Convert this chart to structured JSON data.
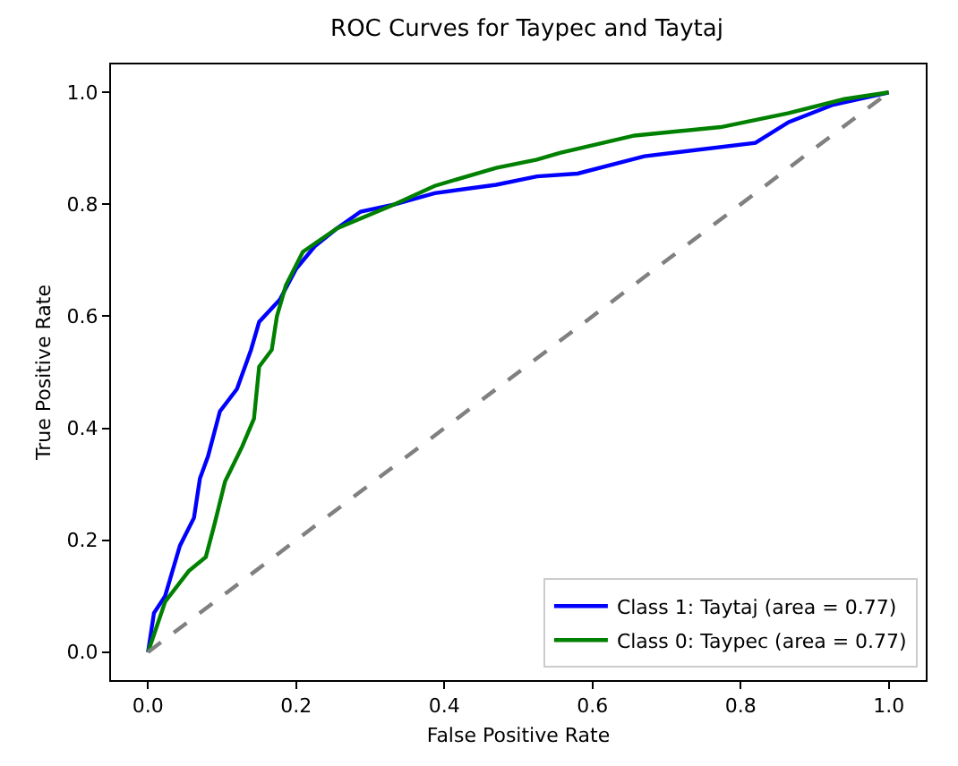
{
  "chart_data": {
    "type": "line",
    "title": "ROC Curves for Taypec and Taytaj",
    "xlabel": "False Positive Rate",
    "ylabel": "True Positive Rate",
    "xlim": [
      -0.05,
      1.05
    ],
    "ylim": [
      -0.05,
      1.05
    ],
    "xticks": [
      {
        "value": 0,
        "label": "0.0"
      },
      {
        "value": 0.2,
        "label": "0.2"
      },
      {
        "value": 0.4,
        "label": "0.4"
      },
      {
        "value": 0.6,
        "label": "0.6"
      },
      {
        "value": 0.8,
        "label": "0.8"
      },
      {
        "value": 1,
        "label": "1.0"
      }
    ],
    "yticks": [
      {
        "value": 0,
        "label": "0.0"
      },
      {
        "value": 0.2,
        "label": "0.2"
      },
      {
        "value": 0.4,
        "label": "0.4"
      },
      {
        "value": 0.6,
        "label": "0.6"
      },
      {
        "value": 0.8,
        "label": "0.8"
      },
      {
        "value": 1,
        "label": "1.0"
      }
    ],
    "grid": false,
    "legend": "bottom right",
    "marker": "none",
    "line_style": "solid",
    "series": [
      {
        "name": "Class 1: Taytaj (area = 0.77)",
        "color": "#0000ff",
        "x": [
          0,
          0.008,
          0.023,
          0.043,
          0.062,
          0.07,
          0.081,
          0.097,
          0.12,
          0.139,
          0.15,
          0.178,
          0.2,
          0.225,
          0.255,
          0.287,
          0.333,
          0.387,
          0.47,
          0.525,
          0.58,
          0.67,
          0.82,
          0.865,
          0.925,
          1
        ],
        "values": [
          0,
          0.07,
          0.1,
          0.19,
          0.24,
          0.31,
          0.35,
          0.43,
          0.47,
          0.54,
          0.59,
          0.63,
          0.685,
          0.725,
          0.757,
          0.787,
          0.8,
          0.82,
          0.835,
          0.85,
          0.855,
          0.886,
          0.91,
          0.947,
          0.978,
          1
        ]
      },
      {
        "name": "Class 0: Taypec (area = 0.77)",
        "color": "#008000",
        "x": [
          0,
          0.023,
          0.055,
          0.078,
          0.09,
          0.104,
          0.127,
          0.143,
          0.15,
          0.167,
          0.174,
          0.186,
          0.209,
          0.255,
          0.333,
          0.387,
          0.47,
          0.525,
          0.556,
          0.657,
          0.773,
          0.865,
          0.94,
          1
        ],
        "values": [
          0,
          0.09,
          0.145,
          0.17,
          0.23,
          0.305,
          0.367,
          0.417,
          0.51,
          0.54,
          0.6,
          0.655,
          0.715,
          0.757,
          0.8,
          0.833,
          0.865,
          0.88,
          0.892,
          0.923,
          0.938,
          0.963,
          0.988,
          1
        ]
      },
      {
        "color": "#808080",
        "line_style": "dashed",
        "x": [
          0,
          1
        ],
        "values": [
          0,
          1
        ]
      }
    ]
  }
}
